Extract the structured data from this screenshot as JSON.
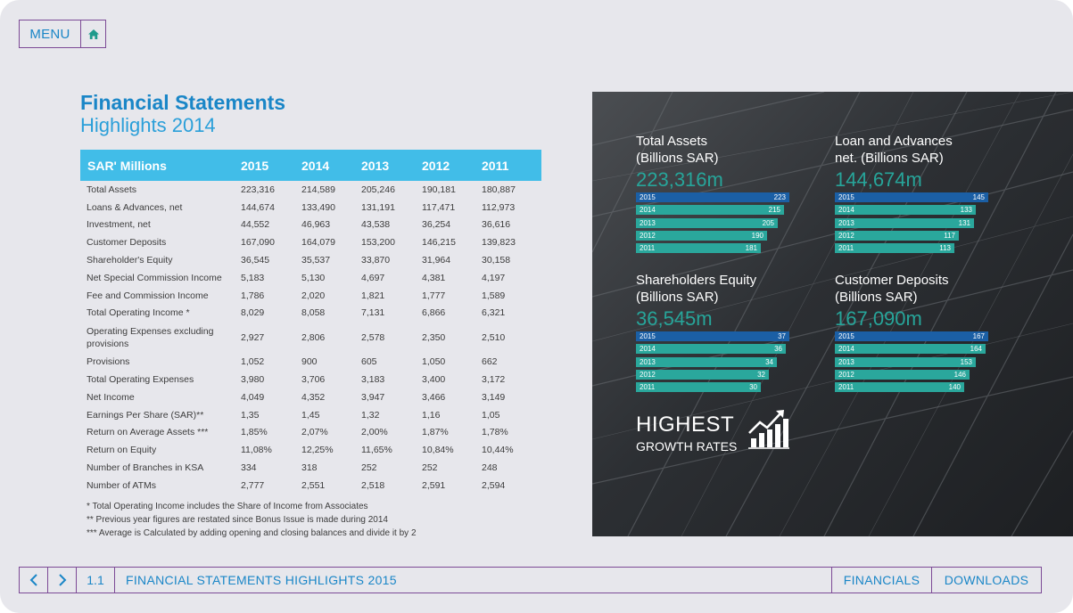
{
  "nav": {
    "menu_label": "MENU"
  },
  "title": {
    "main": "Financial Statements",
    "sub": "Highlights 2014"
  },
  "table": {
    "headers": [
      "SAR' Millions",
      "2015",
      "2014",
      "2013",
      "2012",
      "2011"
    ],
    "rows": [
      [
        "Total Assets",
        "223,316",
        "214,589",
        "205,246",
        "190,181",
        "180,887"
      ],
      [
        "Loans & Advances, net",
        "144,674",
        "133,490",
        "131,191",
        "117,471",
        "112,973"
      ],
      [
        "Investment, net",
        "44,552",
        "46,963",
        "43,538",
        "36,254",
        "36,616"
      ],
      [
        "Customer Deposits",
        "167,090",
        "164,079",
        "153,200",
        "146,215",
        "139,823"
      ],
      [
        "Shareholder's Equity",
        "36,545",
        "35,537",
        "33,870",
        "31,964",
        "30,158"
      ],
      [
        "Net Special Commission Income",
        "5,183",
        "5,130",
        "4,697",
        "4,381",
        "4,197"
      ],
      [
        "Fee and Commission Income",
        "1,786",
        "2,020",
        "1,821",
        "1,777",
        "1,589"
      ],
      [
        "Total Operating Income *",
        "8,029",
        "8,058",
        "7,131",
        "6,866",
        "6,321"
      ],
      [
        "Operating Expenses excluding provisions",
        "2,927",
        "2,806",
        "2,578",
        "2,350",
        "2,510"
      ],
      [
        "Provisions",
        "1,052",
        "900",
        "605",
        "1,050",
        "662"
      ],
      [
        "Total Operating Expenses",
        "3,980",
        "3,706",
        "3,183",
        "3,400",
        "3,172"
      ],
      [
        "Net Income",
        "4,049",
        "4,352",
        "3,947",
        "3,466",
        "3,149"
      ],
      [
        "Earnings Per Share (SAR)**",
        "1,35",
        "1,45",
        "1,32",
        "1,16",
        "1,05"
      ],
      [
        "Return on Average Assets ***",
        "1,85%",
        "2,07%",
        "2,00%",
        "1,87%",
        "1,78%"
      ],
      [
        "Return on Equity",
        "11,08%",
        "12,25%",
        "11,65%",
        "10,84%",
        "10,44%"
      ],
      [
        "Number of Branches in KSA",
        "334",
        "318",
        "252",
        "252",
        "248"
      ],
      [
        "Number of ATMs",
        "2,777",
        "2,551",
        "2,518",
        "2,591",
        "2,594"
      ]
    ],
    "footnotes": [
      "* Total Operating Income includes the Share of Income from Associates",
      "** Previous year figures are restated since Bonus Issue is made during 2014",
      "*** Average is Calculated by adding opening and closing balances and divide it by 2"
    ]
  },
  "stats": [
    {
      "label_line1": "Total Assets",
      "label_line2": "(Billions SAR)",
      "big": "223,316m",
      "bars": [
        {
          "year": "2015",
          "value": 223
        },
        {
          "year": "2014",
          "value": 215
        },
        {
          "year": "2013",
          "value": 205
        },
        {
          "year": "2012",
          "value": 190
        },
        {
          "year": "2011",
          "value": 181
        }
      ]
    },
    {
      "label_line1": "Loan and Advances",
      "label_line2": "net. (Billions SAR)",
      "big": "144,674m",
      "bars": [
        {
          "year": "2015",
          "value": 145
        },
        {
          "year": "2014",
          "value": 133
        },
        {
          "year": "2013",
          "value": 131
        },
        {
          "year": "2012",
          "value": 117
        },
        {
          "year": "2011",
          "value": 113
        }
      ]
    },
    {
      "label_line1": "Shareholders Equity",
      "label_line2": "(Billions SAR)",
      "big": "36,545m",
      "bars": [
        {
          "year": "2015",
          "value": 37
        },
        {
          "year": "2014",
          "value": 36
        },
        {
          "year": "2013",
          "value": 34
        },
        {
          "year": "2012",
          "value": 32
        },
        {
          "year": "2011",
          "value": 30
        }
      ]
    },
    {
      "label_line1": "Customer Deposits",
      "label_line2": "(Billions SAR)",
      "big": "167,090m",
      "bars": [
        {
          "year": "2015",
          "value": 167
        },
        {
          "year": "2014",
          "value": 164
        },
        {
          "year": "2013",
          "value": 153
        },
        {
          "year": "2012",
          "value": 146
        },
        {
          "year": "2011",
          "value": 140
        }
      ]
    }
  ],
  "growth": {
    "line1": "HIGHEST",
    "line2": "GROWTH RATES"
  },
  "bottom": {
    "section_number": "1.1",
    "section_title": "FINANCIAL STATEMENTS HIGHLIGHTS 2015",
    "financials_label": "FINANCIALS",
    "downloads_label": "DOWNLOADS"
  },
  "colors": {
    "accent_blue": "#1a86c7",
    "header_cyan": "#41bde8",
    "teal": "#2aa79c",
    "bar_dark_blue": "#1b5fa5",
    "border_purple": "#7c4a96"
  }
}
